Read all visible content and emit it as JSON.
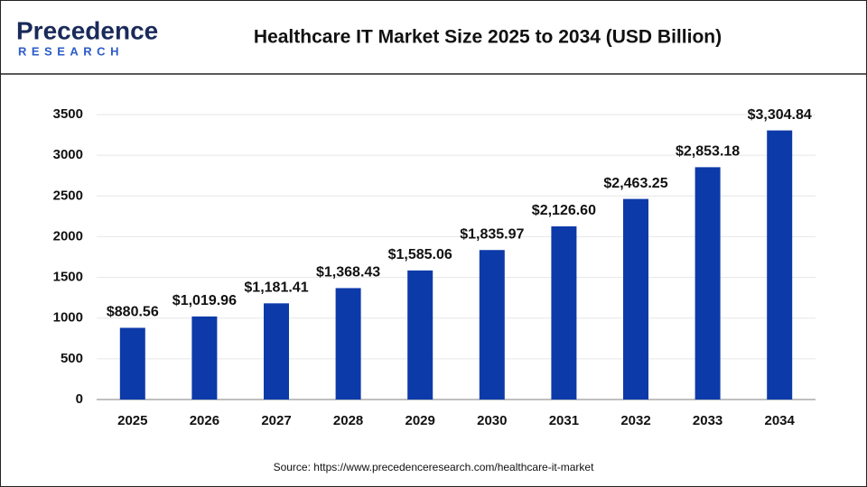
{
  "logo": {
    "name": "Precedence",
    "sub": "RESEARCH"
  },
  "chart_data": {
    "type": "bar",
    "title": "Healthcare IT Market Size 2025 to 2034 (USD Billion)",
    "categories": [
      "2025",
      "2026",
      "2027",
      "2028",
      "2029",
      "2030",
      "2031",
      "2032",
      "2033",
      "2034"
    ],
    "values": [
      880.56,
      1019.96,
      1181.41,
      1368.43,
      1585.06,
      1835.97,
      2126.6,
      2463.25,
      2853.18,
      3304.84
    ],
    "value_labels": [
      "$880.56",
      "$1,019.96",
      "$1,181.41",
      "$1,368.43",
      "$1,585.06",
      "$1,835.97",
      "$2,126.60",
      "$2,463.25",
      "$2,853.18",
      "$3,304.84"
    ],
    "color": "#0d3aa9",
    "ylim": [
      0,
      3500
    ],
    "yticks": [
      0,
      500,
      1000,
      1500,
      2000,
      2500,
      3000,
      3500
    ],
    "grid": true,
    "source": "Source: https://www.precedenceresearch.com/healthcare-it-market"
  }
}
